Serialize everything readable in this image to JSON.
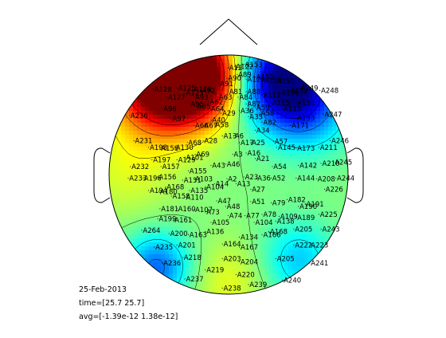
{
  "chart_data": {
    "type": "heatmap",
    "title": "",
    "colormap": "jet",
    "grid": false,
    "contours": true,
    "legend": "none",
    "sources": [
      {
        "x": -0.55,
        "y": 0.83,
        "v": 1.0,
        "w": 0.3
      },
      {
        "x": -0.38,
        "y": 0.8,
        "v": 0.75,
        "w": 0.3
      },
      {
        "x": -0.2,
        "y": 0.82,
        "v": 0.45,
        "w": 0.2
      },
      {
        "x": 0.45,
        "y": 0.8,
        "v": -0.95,
        "w": 0.27
      },
      {
        "x": 0.67,
        "y": 0.55,
        "v": -0.4,
        "w": 0.25
      },
      {
        "x": -0.6,
        "y": -0.78,
        "v": -0.55,
        "w": 0.2
      },
      {
        "x": 0.58,
        "y": -0.72,
        "v": -0.35,
        "w": 0.22
      },
      {
        "x": 0.0,
        "y": -0.9,
        "v": 0.2,
        "w": 0.25
      },
      {
        "x": -0.85,
        "y": 0.05,
        "v": 0.18,
        "w": 0.3
      }
    ],
    "value_range": [
      -1.0,
      1.0
    ],
    "channels": [
      {
        "label": "A153",
        "x": 0.14,
        "y": 0.97
      },
      {
        "label": "A122",
        "x": 0.06,
        "y": 0.95
      },
      {
        "label": "A12",
        "x": 0.0,
        "y": 0.94
      },
      {
        "label": "A151",
        "x": 0.24,
        "y": 0.86
      },
      {
        "label": "A89",
        "x": 0.08,
        "y": 0.88
      },
      {
        "label": "A90",
        "x": -0.01,
        "y": 0.85
      },
      {
        "label": "A120",
        "x": 0.16,
        "y": 0.84
      },
      {
        "label": "A118",
        "x": 0.31,
        "y": 0.83
      },
      {
        "label": "A150",
        "x": 0.42,
        "y": 0.82
      },
      {
        "label": "A91",
        "x": -0.08,
        "y": 0.8
      },
      {
        "label": "A125",
        "x": -0.45,
        "y": 0.76
      },
      {
        "label": "A126",
        "x": -0.31,
        "y": 0.75
      },
      {
        "label": "A92",
        "x": -0.24,
        "y": 0.74
      },
      {
        "label": "A123",
        "x": -0.38,
        "y": 0.72
      },
      {
        "label": "A93",
        "x": -0.3,
        "y": 0.68
      },
      {
        "label": "A81",
        "x": 0.0,
        "y": 0.73
      },
      {
        "label": "A88",
        "x": 0.16,
        "y": 0.73
      },
      {
        "label": "A117",
        "x": 0.3,
        "y": 0.7
      },
      {
        "label": "A116",
        "x": 0.46,
        "y": 0.72
      },
      {
        "label": "A152",
        "x": 0.54,
        "y": 0.74
      },
      {
        "label": "A249",
        "x": 0.63,
        "y": 0.76
      },
      {
        "label": "A248",
        "x": 0.81,
        "y": 0.74
      },
      {
        "label": "A128",
        "x": -0.66,
        "y": 0.75
      },
      {
        "label": "A127",
        "x": -0.54,
        "y": 0.68
      },
      {
        "label": "A96",
        "x": -0.58,
        "y": 0.58
      },
      {
        "label": "A62",
        "x": -0.17,
        "y": 0.64
      },
      {
        "label": "A63",
        "x": -0.09,
        "y": 0.68
      },
      {
        "label": "A84",
        "x": 0.09,
        "y": 0.68
      },
      {
        "label": "A87",
        "x": 0.16,
        "y": 0.62
      },
      {
        "label": "A59",
        "x": 0.24,
        "y": 0.59
      },
      {
        "label": "A58",
        "x": 0.28,
        "y": 0.54
      },
      {
        "label": "A115",
        "x": 0.38,
        "y": 0.63
      },
      {
        "label": "A113",
        "x": 0.48,
        "y": 0.58
      },
      {
        "label": "A134",
        "x": 0.6,
        "y": 0.63
      },
      {
        "label": "A133",
        "x": 0.6,
        "y": 0.5
      },
      {
        "label": "A247",
        "x": 0.84,
        "y": 0.53
      },
      {
        "label": "A64",
        "x": -0.16,
        "y": 0.58
      },
      {
        "label": "A29",
        "x": -0.06,
        "y": 0.54
      },
      {
        "label": "A36",
        "x": 0.1,
        "y": 0.56
      },
      {
        "label": "A236",
        "x": -0.87,
        "y": 0.52
      },
      {
        "label": "A65",
        "x": -0.28,
        "y": 0.6
      },
      {
        "label": "A95",
        "x": -0.34,
        "y": 0.62
      },
      {
        "label": "A97",
        "x": -0.5,
        "y": 0.49
      },
      {
        "label": "A66",
        "x": -0.3,
        "y": 0.43
      },
      {
        "label": "A67",
        "x": -0.22,
        "y": 0.43
      },
      {
        "label": "A40",
        "x": -0.15,
        "y": 0.48
      },
      {
        "label": "A58",
        "x": -0.12,
        "y": 0.44
      },
      {
        "label": "A35",
        "x": 0.18,
        "y": 0.51
      },
      {
        "label": "A34",
        "x": 0.24,
        "y": 0.39
      },
      {
        "label": "A82",
        "x": 0.3,
        "y": 0.46
      },
      {
        "label": "A171",
        "x": 0.55,
        "y": 0.43
      },
      {
        "label": "A246",
        "x": 0.9,
        "y": 0.3
      },
      {
        "label": "A231",
        "x": -0.83,
        "y": 0.3
      },
      {
        "label": "A198",
        "x": -0.7,
        "y": 0.24
      },
      {
        "label": "A158",
        "x": -0.6,
        "y": 0.23
      },
      {
        "label": "A130",
        "x": -0.47,
        "y": 0.24
      },
      {
        "label": "A68",
        "x": -0.36,
        "y": 0.28
      },
      {
        "label": "A28",
        "x": -0.22,
        "y": 0.3
      },
      {
        "label": "A13",
        "x": -0.05,
        "y": 0.34
      },
      {
        "label": "A6",
        "x": 0.05,
        "y": 0.34
      },
      {
        "label": "A25",
        "x": 0.2,
        "y": 0.28
      },
      {
        "label": "A17",
        "x": 0.1,
        "y": 0.28
      },
      {
        "label": "A57",
        "x": 0.4,
        "y": 0.29
      },
      {
        "label": "A145",
        "x": 0.43,
        "y": 0.24
      },
      {
        "label": "A173",
        "x": 0.6,
        "y": 0.23
      },
      {
        "label": "A211",
        "x": 0.8,
        "y": 0.24
      },
      {
        "label": "A197",
        "x": -0.67,
        "y": 0.13
      },
      {
        "label": "A157",
        "x": -0.59,
        "y": 0.07
      },
      {
        "label": "A129",
        "x": -0.45,
        "y": 0.13
      },
      {
        "label": "A101",
        "x": -0.38,
        "y": 0.15
      },
      {
        "label": "A69",
        "x": -0.29,
        "y": 0.18
      },
      {
        "label": "A43",
        "x": -0.15,
        "y": 0.08
      },
      {
        "label": "A46",
        "x": -0.02,
        "y": 0.09
      },
      {
        "label": "A3",
        "x": 0.04,
        "y": 0.18
      },
      {
        "label": "A16",
        "x": 0.16,
        "y": 0.19
      },
      {
        "label": "A21",
        "x": 0.24,
        "y": 0.14
      },
      {
        "label": "A54",
        "x": 0.39,
        "y": 0.07
      },
      {
        "label": "A142",
        "x": 0.62,
        "y": 0.08
      },
      {
        "label": "A210",
        "x": 0.82,
        "y": 0.1
      },
      {
        "label": "A245",
        "x": 0.93,
        "y": 0.11
      },
      {
        "label": "A232",
        "x": -0.86,
        "y": 0.07
      },
      {
        "label": "A155",
        "x": -0.35,
        "y": 0.03
      },
      {
        "label": "A131",
        "x": -0.4,
        "y": -0.05
      },
      {
        "label": "A103",
        "x": -0.3,
        "y": -0.04
      },
      {
        "label": "A14",
        "x": -0.12,
        "y": -0.08
      },
      {
        "label": "A2",
        "x": -0.01,
        "y": -0.04
      },
      {
        "label": "A23",
        "x": 0.14,
        "y": -0.02
      },
      {
        "label": "A36",
        "x": 0.25,
        "y": -0.03
      },
      {
        "label": "A52",
        "x": 0.38,
        "y": -0.03
      },
      {
        "label": "A144",
        "x": 0.6,
        "y": -0.03
      },
      {
        "label": "A208",
        "x": 0.78,
        "y": -0.04
      },
      {
        "label": "A244",
        "x": 0.95,
        "y": -0.03
      },
      {
        "label": "A233",
        "x": -0.88,
        "y": -0.03
      },
      {
        "label": "A196",
        "x": -0.75,
        "y": -0.03
      },
      {
        "label": "A156",
        "x": -0.62,
        "y": -0.02
      },
      {
        "label": "A168",
        "x": -0.55,
        "y": -0.11
      },
      {
        "label": "A135",
        "x": -0.34,
        "y": -0.14
      },
      {
        "label": "A104",
        "x": -0.2,
        "y": -0.11
      },
      {
        "label": "A13",
        "x": 0.07,
        "y": -0.08
      },
      {
        "label": "A27",
        "x": 0.2,
        "y": -0.13
      },
      {
        "label": "A226",
        "x": 0.85,
        "y": -0.13
      },
      {
        "label": "A180",
        "x": -0.61,
        "y": -0.15
      },
      {
        "label": "A194",
        "x": -0.7,
        "y": -0.14
      },
      {
        "label": "A158",
        "x": -0.5,
        "y": -0.19
      },
      {
        "label": "A110",
        "x": -0.38,
        "y": -0.2
      },
      {
        "label": "A47",
        "x": -0.1,
        "y": -0.23
      },
      {
        "label": "A48",
        "x": -0.02,
        "y": -0.28
      },
      {
        "label": "A51",
        "x": 0.2,
        "y": -0.24
      },
      {
        "label": "A79",
        "x": 0.38,
        "y": -0.25
      },
      {
        "label": "A182",
        "x": 0.52,
        "y": -0.22
      },
      {
        "label": "A190",
        "x": 0.62,
        "y": -0.28
      },
      {
        "label": "A191",
        "x": 0.68,
        "y": -0.26
      },
      {
        "label": "A181",
        "x": -0.6,
        "y": -0.3
      },
      {
        "label": "A160",
        "x": -0.45,
        "y": -0.3
      },
      {
        "label": "A107",
        "x": -0.3,
        "y": -0.31
      },
      {
        "label": "A73",
        "x": -0.2,
        "y": -0.33
      },
      {
        "label": "A74",
        "x": 0.0,
        "y": -0.36
      },
      {
        "label": "A77",
        "x": 0.15,
        "y": -0.36
      },
      {
        "label": "A78",
        "x": 0.3,
        "y": -0.35
      },
      {
        "label": "A109",
        "x": 0.45,
        "y": -0.37
      },
      {
        "label": "A189",
        "x": 0.6,
        "y": -0.38
      },
      {
        "label": "A225",
        "x": 0.8,
        "y": -0.35
      },
      {
        "label": "A199",
        "x": -0.62,
        "y": -0.39
      },
      {
        "label": "A161",
        "x": -0.48,
        "y": -0.4
      },
      {
        "label": "A105",
        "x": -0.15,
        "y": -0.42
      },
      {
        "label": "A104",
        "x": 0.23,
        "y": -0.42
      },
      {
        "label": "A138",
        "x": 0.42,
        "y": -0.41
      },
      {
        "label": "A264",
        "x": -0.76,
        "y": -0.49
      },
      {
        "label": "A200",
        "x": -0.52,
        "y": -0.52
      },
      {
        "label": "A163",
        "x": -0.35,
        "y": -0.53
      },
      {
        "label": "A136",
        "x": -0.2,
        "y": -0.5
      },
      {
        "label": "A134",
        "x": 0.1,
        "y": -0.55
      },
      {
        "label": "A166",
        "x": 0.3,
        "y": -0.53
      },
      {
        "label": "A168",
        "x": 0.36,
        "y": -0.5
      },
      {
        "label": "A205",
        "x": 0.58,
        "y": -0.48
      },
      {
        "label": "A243",
        "x": 0.82,
        "y": -0.48
      },
      {
        "label": "A235",
        "x": -0.65,
        "y": -0.64
      },
      {
        "label": "A201",
        "x": -0.45,
        "y": -0.62
      },
      {
        "label": "A164",
        "x": -0.05,
        "y": -0.61
      },
      {
        "label": "A167",
        "x": 0.1,
        "y": -0.64
      },
      {
        "label": "A222",
        "x": 0.58,
        "y": -0.62
      },
      {
        "label": "A223",
        "x": 0.72,
        "y": -0.62
      },
      {
        "label": "A218",
        "x": -0.4,
        "y": -0.73
      },
      {
        "label": "A203",
        "x": -0.05,
        "y": -0.74
      },
      {
        "label": "A204",
        "x": 0.1,
        "y": -0.77
      },
      {
        "label": "A205",
        "x": 0.42,
        "y": -0.74
      },
      {
        "label": "A241",
        "x": 0.72,
        "y": -0.78
      },
      {
        "label": "A236",
        "x": -0.58,
        "y": -0.78
      },
      {
        "label": "A219",
        "x": -0.2,
        "y": -0.84
      },
      {
        "label": "A220",
        "x": 0.07,
        "y": -0.88
      },
      {
        "label": "A237",
        "x": -0.38,
        "y": -0.92
      },
      {
        "label": "A240",
        "x": 0.48,
        "y": -0.93
      },
      {
        "label": "A238",
        "x": -0.05,
        "y": -1.0
      },
      {
        "label": "A239",
        "x": 0.18,
        "y": -0.97
      }
    ]
  },
  "info": {
    "date": "25-Feb-2013",
    "time": "time=[25.7 25.7]",
    "avg": "avg=[-1.39e-12 1.38e-12]"
  }
}
